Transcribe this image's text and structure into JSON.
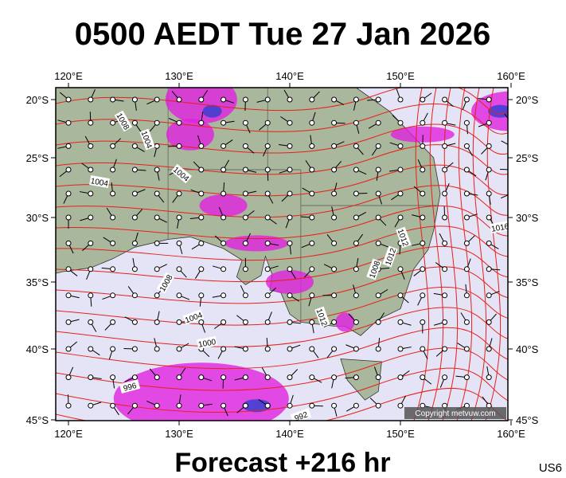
{
  "header": {
    "title": "0500 AEDT Tue 27 Jan 2026"
  },
  "footer": {
    "forecast": "Forecast +216 hr",
    "code": "US6"
  },
  "copyright": "Copyright metvuw.com",
  "axes": {
    "lon_labels": [
      "120°E",
      "130°E",
      "140°E",
      "150°E",
      "160°E"
    ],
    "lat_labels": [
      "20°S",
      "25°S",
      "30°S",
      "35°S",
      "40°S",
      "45°S"
    ]
  },
  "isobar_labels": [
    "1008",
    "1004",
    "1004",
    "1004",
    "1008",
    "1004",
    "1000",
    "996",
    "992",
    "1012",
    "1012",
    "1008",
    "1012",
    "1016"
  ]
}
